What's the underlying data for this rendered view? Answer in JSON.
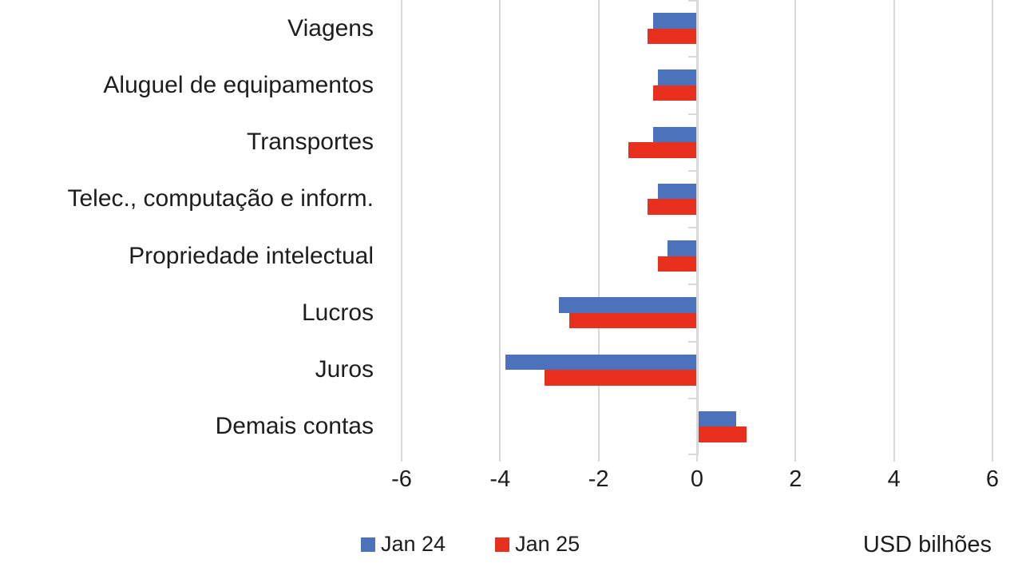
{
  "chart_data": {
    "type": "bar",
    "orientation": "horizontal",
    "title": "",
    "categories": [
      "Viagens",
      "Aluguel de equipamentos",
      "Transportes",
      "Telec., computação e inform.",
      "Propriedade intelectual",
      "Lucros",
      "Juros",
      "Demais contas"
    ],
    "series": [
      {
        "name": "Jan 24",
        "color": "#4C72BC",
        "values": [
          -0.9,
          -0.8,
          -0.9,
          -0.8,
          -0.6,
          -2.8,
          -3.9,
          0.8
        ]
      },
      {
        "name": "Jan 25",
        "color": "#E8301F",
        "values": [
          -1.0,
          -0.9,
          -1.4,
          -1.0,
          -0.8,
          -2.6,
          -3.1,
          1.0
        ]
      }
    ],
    "xlim": [
      -6,
      6
    ],
    "xticks": [
      -6,
      -4,
      -2,
      0,
      2,
      4,
      6
    ],
    "xlabel": "USD bilhões",
    "grid": true,
    "grid_color": "#D9D9D9",
    "text_color": "#1D1D1D",
    "legend_position": "bottom-left"
  }
}
